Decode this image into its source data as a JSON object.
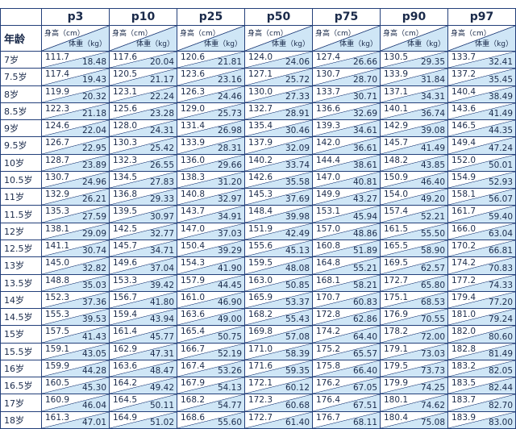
{
  "table": {
    "columns": [
      "p3",
      "p10",
      "p25",
      "p50",
      "p75",
      "p90",
      "p97"
    ],
    "age_header": "年龄",
    "height_label": "身高（cm）",
    "weight_label": "体重（kg）",
    "rows": [
      {
        "age": "7岁",
        "cells": [
          [
            "111.7",
            "18.48"
          ],
          [
            "117.6",
            "20.04"
          ],
          [
            "120.6",
            "21.81"
          ],
          [
            "124.0",
            "24.06"
          ],
          [
            "127.4",
            "26.66"
          ],
          [
            "130.5",
            "29.35"
          ],
          [
            "133.7",
            "32.41"
          ]
        ]
      },
      {
        "age": "7.5岁",
        "cells": [
          [
            "117.4",
            "19.43"
          ],
          [
            "120.5",
            "21.17"
          ],
          [
            "123.6",
            "23.16"
          ],
          [
            "127.1",
            "25.72"
          ],
          [
            "130.7",
            "28.70"
          ],
          [
            "133.9",
            "31.84"
          ],
          [
            "137.2",
            "35.45"
          ]
        ]
      },
      {
        "age": "8岁",
        "cells": [
          [
            "119.9",
            "20.32"
          ],
          [
            "123.1",
            "22.24"
          ],
          [
            "126.3",
            "24.46"
          ],
          [
            "130.0",
            "27.33"
          ],
          [
            "133.7",
            "30.71"
          ],
          [
            "137.1",
            "34.31"
          ],
          [
            "140.4",
            "38.49"
          ]
        ]
      },
      {
        "age": "8.5岁",
        "cells": [
          [
            "122.3",
            "21.18"
          ],
          [
            "125.6",
            "23.28"
          ],
          [
            "129.0",
            "25.73"
          ],
          [
            "132.7",
            "28.91"
          ],
          [
            "136.6",
            "32.69"
          ],
          [
            "140.1",
            "36.74"
          ],
          [
            "143.6",
            "41.49"
          ]
        ]
      },
      {
        "age": "9岁",
        "cells": [
          [
            "124.6",
            "22.04"
          ],
          [
            "128.0",
            "24.31"
          ],
          [
            "131.4",
            "26.98"
          ],
          [
            "135.4",
            "30.46"
          ],
          [
            "139.3",
            "34.61"
          ],
          [
            "142.9",
            "39.08"
          ],
          [
            "146.5",
            "44.35"
          ]
        ]
      },
      {
        "age": "9.5岁",
        "cells": [
          [
            "126.7",
            "22.95"
          ],
          [
            "130.3",
            "25.42"
          ],
          [
            "133.9",
            "28.31"
          ],
          [
            "137.9",
            "32.09"
          ],
          [
            "142.0",
            "36.61"
          ],
          [
            "145.7",
            "41.49"
          ],
          [
            "149.4",
            "47.24"
          ]
        ]
      },
      {
        "age": "10岁",
        "cells": [
          [
            "128.7",
            "23.89"
          ],
          [
            "132.3",
            "26.55"
          ],
          [
            "136.0",
            "29.66"
          ],
          [
            "140.2",
            "33.74"
          ],
          [
            "144.4",
            "38.61"
          ],
          [
            "148.2",
            "43.85"
          ],
          [
            "152.0",
            "50.01"
          ]
        ]
      },
      {
        "age": "10.5岁",
        "cells": [
          [
            "130.7",
            "24.96"
          ],
          [
            "134.5",
            "27.83"
          ],
          [
            "138.3",
            "31.20"
          ],
          [
            "142.6",
            "35.58"
          ],
          [
            "147.0",
            "40.81"
          ],
          [
            "150.9",
            "46.40"
          ],
          [
            "154.9",
            "52.93"
          ]
        ]
      },
      {
        "age": "11岁",
        "cells": [
          [
            "132.9",
            "26.21"
          ],
          [
            "136.8",
            "29.33"
          ],
          [
            "140.8",
            "32.97"
          ],
          [
            "145.3",
            "37.69"
          ],
          [
            "149.9",
            "43.27"
          ],
          [
            "154.0",
            "49.20"
          ],
          [
            "158.1",
            "56.07"
          ]
        ]
      },
      {
        "age": "11.5岁",
        "cells": [
          [
            "135.3",
            "27.59"
          ],
          [
            "139.5",
            "30.97"
          ],
          [
            "143.7",
            "34.91"
          ],
          [
            "148.4",
            "39.98"
          ],
          [
            "153.1",
            "45.94"
          ],
          [
            "157.4",
            "52.21"
          ],
          [
            "161.7",
            "59.40"
          ]
        ]
      },
      {
        "age": "12岁",
        "cells": [
          [
            "138.1",
            "29.09"
          ],
          [
            "142.5",
            "32.77"
          ],
          [
            "147.0",
            "37.03"
          ],
          [
            "151.9",
            "42.49"
          ],
          [
            "157.0",
            "48.86"
          ],
          [
            "161.5",
            "55.50"
          ],
          [
            "166.0",
            "63.04"
          ]
        ]
      },
      {
        "age": "12.5岁",
        "cells": [
          [
            "141.1",
            "30.74"
          ],
          [
            "145.7",
            "34.71"
          ],
          [
            "150.4",
            "39.29"
          ],
          [
            "155.6",
            "45.13"
          ],
          [
            "160.8",
            "51.89"
          ],
          [
            "165.5",
            "58.90"
          ],
          [
            "170.2",
            "66.81"
          ]
        ]
      },
      {
        "age": "13岁",
        "cells": [
          [
            "145.0",
            "32.82"
          ],
          [
            "149.6",
            "37.04"
          ],
          [
            "154.3",
            "41.90"
          ],
          [
            "159.5",
            "48.08"
          ],
          [
            "164.8",
            "55.21"
          ],
          [
            "169.5",
            "62.57"
          ],
          [
            "174.2",
            "70.83"
          ]
        ]
      },
      {
        "age": "13.5岁",
        "cells": [
          [
            "148.8",
            "35.03"
          ],
          [
            "153.3",
            "39.42"
          ],
          [
            "157.9",
            "44.45"
          ],
          [
            "163.0",
            "50.85"
          ],
          [
            "168.1",
            "58.21"
          ],
          [
            "172.7",
            "65.80"
          ],
          [
            "177.2",
            "74.33"
          ]
        ]
      },
      {
        "age": "14岁",
        "cells": [
          [
            "152.3",
            "37.36"
          ],
          [
            "156.7",
            "41.80"
          ],
          [
            "161.0",
            "46.90"
          ],
          [
            "165.9",
            "53.37"
          ],
          [
            "170.7",
            "60.83"
          ],
          [
            "175.1",
            "68.53"
          ],
          [
            "179.4",
            "77.20"
          ]
        ]
      },
      {
        "age": "14.5岁",
        "cells": [
          [
            "155.3",
            "39.53"
          ],
          [
            "159.4",
            "43.94"
          ],
          [
            "163.6",
            "49.00"
          ],
          [
            "168.2",
            "55.43"
          ],
          [
            "172.8",
            "62.86"
          ],
          [
            "176.9",
            "70.55"
          ],
          [
            "181.0",
            "79.24"
          ]
        ]
      },
      {
        "age": "15岁",
        "cells": [
          [
            "157.5",
            "41.43"
          ],
          [
            "161.4",
            "45.77"
          ],
          [
            "165.4",
            "50.75"
          ],
          [
            "169.8",
            "57.08"
          ],
          [
            "174.2",
            "64.40"
          ],
          [
            "178.2",
            "72.00"
          ],
          [
            "182.0",
            "80.60"
          ]
        ]
      },
      {
        "age": "15.5岁",
        "cells": [
          [
            "159.1",
            "43.05"
          ],
          [
            "162.9",
            "47.31"
          ],
          [
            "166.7",
            "52.19"
          ],
          [
            "171.0",
            "58.39"
          ],
          [
            "175.2",
            "65.57"
          ],
          [
            "179.1",
            "73.03"
          ],
          [
            "182.8",
            "81.49"
          ]
        ]
      },
      {
        "age": "16岁",
        "cells": [
          [
            "159.9",
            "44.28"
          ],
          [
            "163.6",
            "48.47"
          ],
          [
            "167.4",
            "53.26"
          ],
          [
            "171.6",
            "59.35"
          ],
          [
            "175.8",
            "66.40"
          ],
          [
            "179.5",
            "73.73"
          ],
          [
            "183.2",
            "82.05"
          ]
        ]
      },
      {
        "age": "16.5岁",
        "cells": [
          [
            "160.5",
            "45.30"
          ],
          [
            "164.2",
            "49.42"
          ],
          [
            "167.9",
            "54.13"
          ],
          [
            "172.1",
            "60.12"
          ],
          [
            "176.2",
            "67.05"
          ],
          [
            "179.9",
            "74.25"
          ],
          [
            "183.5",
            "82.44"
          ]
        ]
      },
      {
        "age": "17岁",
        "cells": [
          [
            "160.9",
            "46.04"
          ],
          [
            "164.5",
            "50.11"
          ],
          [
            "168.2",
            "54.77"
          ],
          [
            "172.3",
            "60.68"
          ],
          [
            "176.4",
            "67.51"
          ],
          [
            "180.1",
            "74.62"
          ],
          [
            "183.7",
            "82.70"
          ]
        ]
      },
      {
        "age": "18岁",
        "cells": [
          [
            "161.3",
            "47.01"
          ],
          [
            "164.9",
            "51.02"
          ],
          [
            "168.6",
            "55.60"
          ],
          [
            "172.7",
            "61.40"
          ],
          [
            "176.7",
            "68.11"
          ],
          [
            "180.4",
            "75.08"
          ],
          [
            "183.9",
            "83.00"
          ]
        ]
      }
    ]
  }
}
